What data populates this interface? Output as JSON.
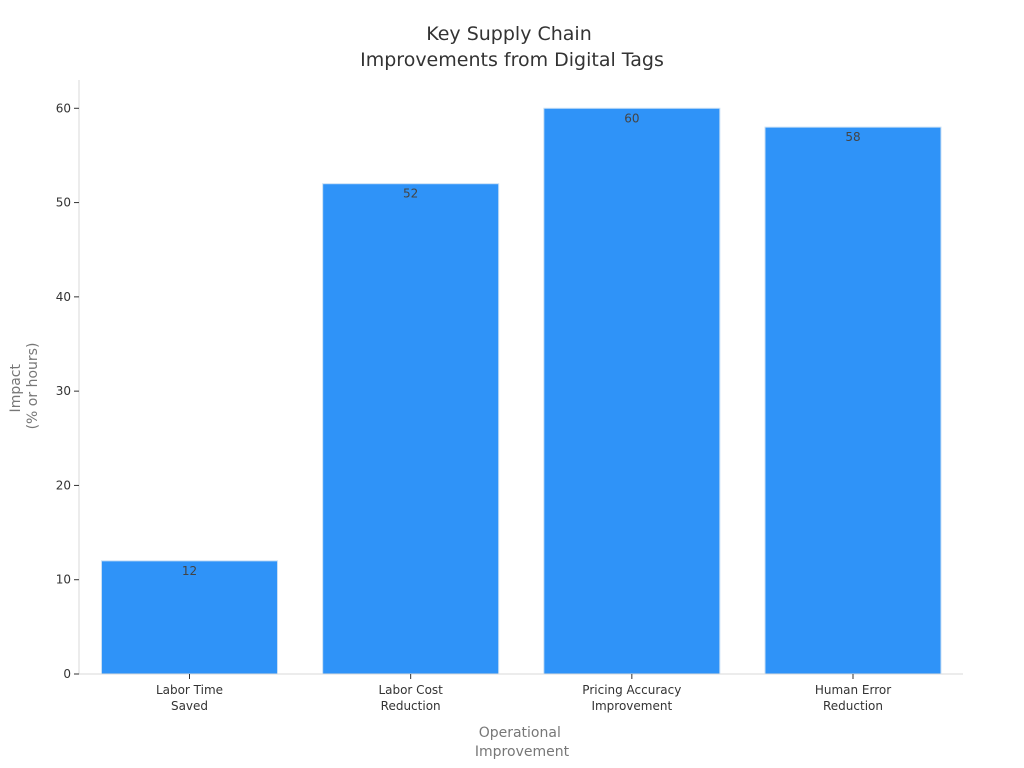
{
  "chart_data": {
    "type": "bar",
    "title": [
      "Key Supply Chain",
      "Improvements from Digital Tags"
    ],
    "categories": [
      [
        "Labor Time",
        "Saved"
      ],
      [
        "Labor Cost",
        "Reduction"
      ],
      [
        "Pricing Accuracy",
        "Improvement"
      ],
      [
        "Human Error",
        "Reduction"
      ]
    ],
    "values": [
      12,
      52,
      60,
      58
    ],
    "xlabel": [
      "Operational",
      "Improvement"
    ],
    "ylabel": [
      "Impact",
      "(% or hours)"
    ],
    "ylim": [
      0,
      63
    ],
    "yticks": [
      0,
      10,
      20,
      30,
      40,
      50,
      60
    ],
    "grid": false,
    "bar_color": "#2f93f8",
    "bar_edge_color": "#c8dff5"
  }
}
